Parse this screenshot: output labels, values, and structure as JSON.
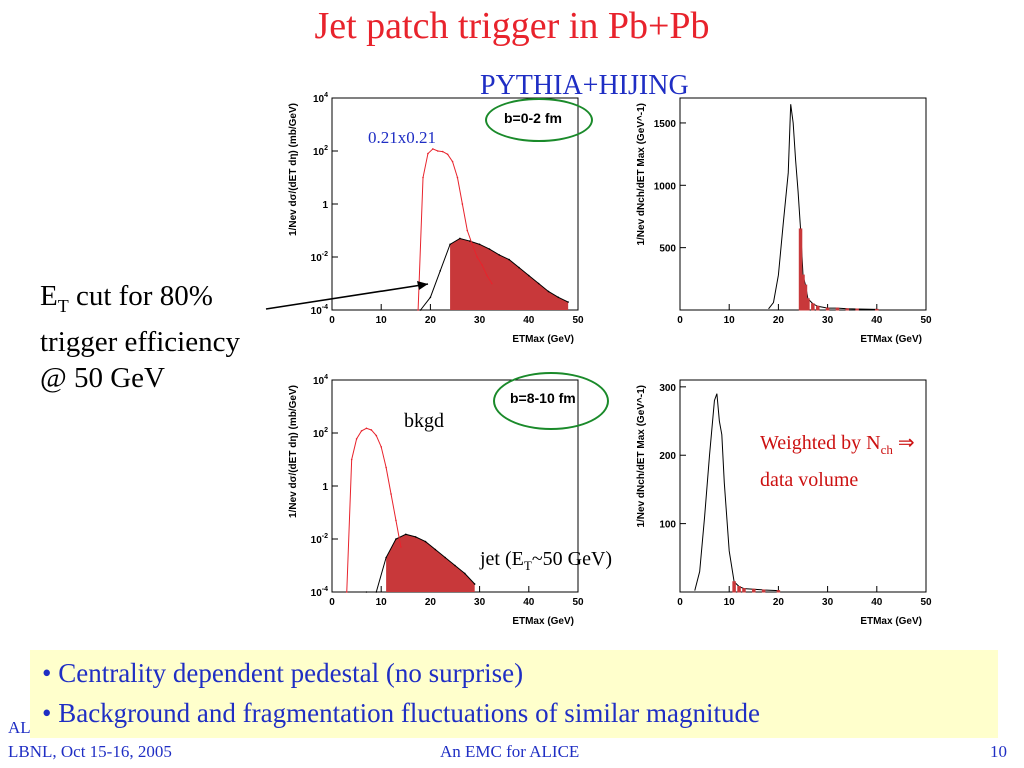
{
  "slide": {
    "title": "Jet patch trigger in Pb+Pb",
    "subtitle": "PYTHIA+HIJING"
  },
  "annotations": {
    "et_cut_line1_prefix": "E",
    "et_cut_line1_sub": "T",
    "et_cut_line1_rest": " cut for 80%",
    "et_cut_line2": "trigger efficiency",
    "et_cut_line3": "@ 50 GeV",
    "bin_size": "0.21x0.21",
    "bkgd": "bkgd",
    "jet_prefix": "jet (E",
    "jet_sub": "T",
    "jet_rest": "~50 GeV)",
    "weighted_prefix": "Weighted by N",
    "weighted_sub": "ch",
    "weighted_arrow": " ⇒",
    "weighted_line2": "data volume",
    "b_top": "b=0-2 fm",
    "b_bottom": "b=8-10 fm"
  },
  "bullets": [
    "• Centrality dependent pedestal (no surprise)",
    "• Background and fragmentation fluctuations of similar magnitude"
  ],
  "footer": {
    "left": "LBNL, Oct 15-16, 2005",
    "left_partial": "AL",
    "center": "An EMC for ALICE",
    "page": "10"
  },
  "colors": {
    "title": "#e8232c",
    "text_blue": "#1f2ec4",
    "hist_red": "#e8232c",
    "fill_red": "#c8383a",
    "green_ellipse": "#1a8a2a",
    "bullet_box": "#ffffcc"
  },
  "chart_data": [
    {
      "type": "area",
      "panel": "top-left",
      "xlabel": "E_T Max (GeV)",
      "ylabel": "1/N_ev dσ/(dE_T dη) (mb/GeV)",
      "log_y": true,
      "xlim": [
        0,
        50
      ],
      "ylim": [
        0.0001,
        10000
      ],
      "xticks": [
        "0",
        "10",
        "20",
        "30",
        "40",
        "50"
      ],
      "yticks": [
        "10^-4",
        "10^-2",
        "1",
        "10^2",
        "10^4"
      ],
      "series": [
        {
          "label": "bkgd",
          "x": [
            17.5,
            18.5,
            19.5,
            20.5,
            21.5,
            22.5,
            23.5,
            24.5,
            25.5,
            26.5,
            27.5,
            28.5,
            29.5,
            30.5,
            31.5,
            32.5
          ],
          "y": [
            0.0001,
            10,
            80,
            120,
            100,
            95,
            75,
            40,
            10,
            1,
            0.1,
            0.03,
            0.01,
            0.005,
            0.002,
            0.001
          ]
        },
        {
          "label": "jet",
          "x": [
            18,
            20,
            22,
            24,
            26,
            28,
            30,
            32,
            34,
            36,
            38,
            40,
            42,
            44,
            46,
            48
          ],
          "y": [
            0.0001,
            0.0003,
            0.003,
            0.03,
            0.05,
            0.04,
            0.03,
            0.02,
            0.012,
            0.008,
            0.004,
            0.002,
            0.001,
            0.0005,
            0.0003,
            0.0002
          ]
        }
      ]
    },
    {
      "type": "bar",
      "panel": "top-right",
      "xlabel": "E_T Max (GeV)",
      "ylabel": "1/N_ev dN_ch/dE_T Max (GeV^-1)",
      "xlim": [
        0,
        50
      ],
      "ylim": [
        0,
        1700
      ],
      "xticks": [
        "0",
        "10",
        "20",
        "30",
        "40",
        "50"
      ],
      "yticks": [
        "500",
        "1000",
        "1500"
      ],
      "x": [
        18,
        19,
        20,
        21,
        22,
        22.5,
        23,
        23.5,
        24,
        24.5,
        25,
        25.5,
        26,
        27,
        28,
        30,
        32,
        34,
        36,
        40
      ],
      "y": [
        10,
        60,
        280,
        700,
        1100,
        1650,
        1500,
        1200,
        950,
        650,
        280,
        200,
        90,
        50,
        30,
        15,
        15,
        10,
        8,
        5
      ]
    },
    {
      "type": "area",
      "panel": "bottom-left",
      "xlabel": "E_T Max (GeV)",
      "ylabel": "1/N_ev dσ/(dE_T dη) (mb/GeV)",
      "log_y": true,
      "xlim": [
        0,
        50
      ],
      "ylim": [
        0.0001,
        10000
      ],
      "xticks": [
        "0",
        "10",
        "20",
        "30",
        "40",
        "50"
      ],
      "yticks": [
        "10^-4",
        "10^-2",
        "1",
        "10^2",
        "10^4"
      ],
      "series": [
        {
          "label": "bkgd",
          "x": [
            3,
            4,
            5,
            6,
            7,
            8,
            9,
            10,
            11,
            12,
            13,
            14
          ],
          "y": [
            0.0001,
            10,
            60,
            120,
            150,
            130,
            80,
            30,
            5,
            0.5,
            0.05,
            0.005
          ]
        },
        {
          "label": "jet",
          "x": [
            7,
            9,
            11,
            13,
            15,
            17,
            19,
            21,
            23,
            25,
            27,
            29
          ],
          "y": [
            0.0001,
            0.0001,
            0.002,
            0.01,
            0.015,
            0.012,
            0.008,
            0.004,
            0.002,
            0.001,
            0.0005,
            0.0002
          ]
        }
      ]
    },
    {
      "type": "bar",
      "panel": "bottom-right",
      "xlabel": "E_T Max (GeV)",
      "ylabel": "1/N_ev dN_ch/dE_T Max (GeV^-1)",
      "xlim": [
        0,
        50
      ],
      "ylim": [
        0,
        310
      ],
      "xticks": [
        "0",
        "10",
        "20",
        "30",
        "40",
        "50"
      ],
      "yticks": [
        "100",
        "200",
        "300"
      ],
      "x": [
        3,
        4,
        5,
        6,
        7,
        7.5,
        8,
        8.5,
        9,
        10,
        11,
        12,
        13,
        15,
        17,
        20
      ],
      "y": [
        2,
        30,
        110,
        200,
        280,
        290,
        250,
        230,
        160,
        60,
        15,
        8,
        5,
        4,
        3,
        2
      ]
    }
  ]
}
